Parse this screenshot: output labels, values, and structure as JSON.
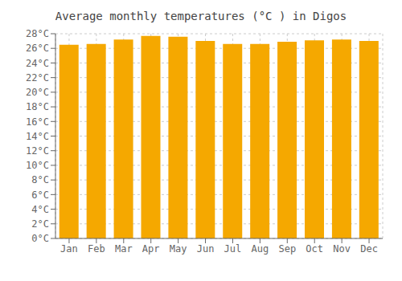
{
  "chart_data": {
    "type": "bar",
    "title": "Average monthly temperatures (°C ) in Digos",
    "categories": [
      "Jan",
      "Feb",
      "Mar",
      "Apr",
      "May",
      "Jun",
      "Jul",
      "Aug",
      "Sep",
      "Oct",
      "Nov",
      "Dec"
    ],
    "values": [
      26.5,
      26.6,
      27.2,
      27.7,
      27.6,
      27.0,
      26.6,
      26.6,
      26.9,
      27.1,
      27.2,
      27.0
    ],
    "color": "#F5A800",
    "ylim": [
      0,
      28
    ],
    "yticks": [
      {
        "value": 0,
        "label": "0°C"
      },
      {
        "value": 2,
        "label": "2°C"
      },
      {
        "value": 4,
        "label": "4°C"
      },
      {
        "value": 6,
        "label": "6°C"
      },
      {
        "value": 8,
        "label": "8°C"
      },
      {
        "value": 10,
        "label": "10°C"
      },
      {
        "value": 12,
        "label": "12°C"
      },
      {
        "value": 14,
        "label": "14°C"
      },
      {
        "value": 16,
        "label": "16°C"
      },
      {
        "value": 18,
        "label": "18°C"
      },
      {
        "value": 20,
        "label": "20°C"
      },
      {
        "value": 22,
        "label": "22°C"
      },
      {
        "value": 24,
        "label": "24°C"
      },
      {
        "value": 26,
        "label": "26°C"
      },
      {
        "value": 28,
        "label": "28°C"
      }
    ],
    "grid": true
  }
}
